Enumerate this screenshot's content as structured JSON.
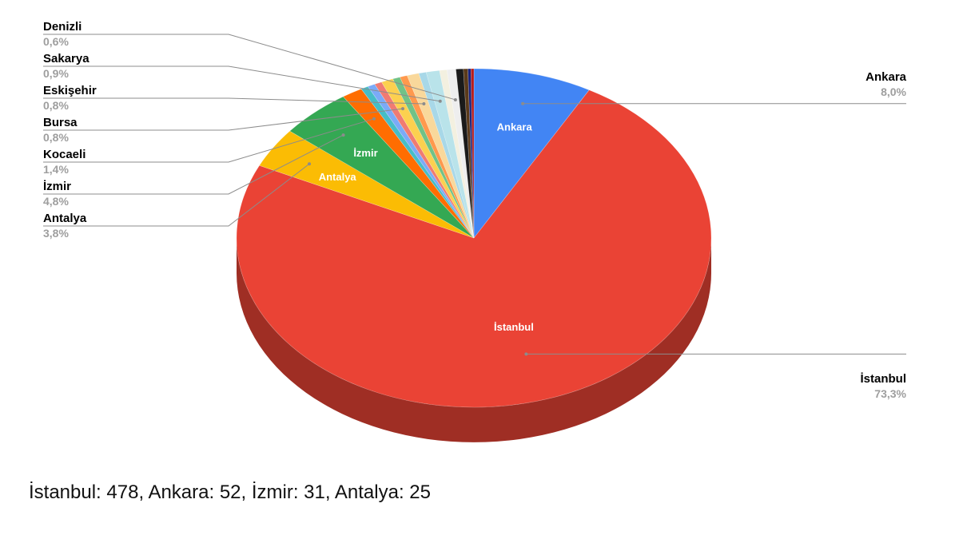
{
  "chart_data": {
    "type": "pie",
    "three_d": true,
    "start_angle_note": "first slice starts at 12 o'clock, clockwise",
    "slices": [
      {
        "name": "Ankara",
        "percent": 8.0,
        "percent_label": "8,0%",
        "color": "#4285f4",
        "show_label": true
      },
      {
        "name": "İstanbul",
        "percent": 73.3,
        "percent_label": "73,3%",
        "color": "#ea4335",
        "show_label": true
      },
      {
        "name": "Antalya",
        "percent": 3.8,
        "percent_label": "3,8%",
        "color": "#fbbc04",
        "show_label": true
      },
      {
        "name": "İzmir",
        "percent": 4.8,
        "percent_label": "4,8%",
        "color": "#34a853",
        "show_label": true
      },
      {
        "name": "Kocaeli",
        "percent": 1.4,
        "percent_label": "1,4%",
        "color": "#ff6d01",
        "show_label": false
      },
      {
        "name": "",
        "percent": 0.5,
        "color": "#46bdc6",
        "show_label": false
      },
      {
        "name": "",
        "percent": 0.5,
        "color": "#7baaf7",
        "show_label": false
      },
      {
        "name": "",
        "percent": 0.5,
        "color": "#f07b72",
        "show_label": false
      },
      {
        "name": "Bursa",
        "percent": 0.8,
        "percent_label": "0,8%",
        "color": "#fcd04f",
        "show_label": false
      },
      {
        "name": "",
        "percent": 0.5,
        "color": "#71c287",
        "show_label": false
      },
      {
        "name": "",
        "percent": 0.5,
        "color": "#ff994d",
        "show_label": false
      },
      {
        "name": "Eskişehir",
        "percent": 0.8,
        "percent_label": "0,8%",
        "color": "#f9d89b",
        "show_label": false
      },
      {
        "name": "",
        "percent": 0.5,
        "color": "#a8d8e8",
        "show_label": false
      },
      {
        "name": "Sakarya",
        "percent": 0.9,
        "percent_label": "0,9%",
        "color": "#b9e3ea",
        "show_label": false
      },
      {
        "name": "",
        "percent": 0.5,
        "color": "#f3f0e0",
        "show_label": false
      },
      {
        "name": "Denizli",
        "percent": 0.6,
        "percent_label": "0,6%",
        "color": "#eeeeee",
        "show_label": false
      },
      {
        "name": "",
        "percent": 0.5,
        "color": "#1a1a1a",
        "show_label": false
      },
      {
        "name": "",
        "percent": 0.3,
        "color": "#5a3a1a",
        "show_label": false
      },
      {
        "name": "",
        "percent": 0.2,
        "color": "#1a237e",
        "show_label": false
      },
      {
        "name": "",
        "percent": 0.2,
        "color": "#b71c1c",
        "show_label": false
      }
    ],
    "external_labels": [
      {
        "name": "Denizli",
        "percent_label": "0,6%",
        "side": "left"
      },
      {
        "name": "Sakarya",
        "percent_label": "0,9%",
        "side": "left"
      },
      {
        "name": "Eskişehir",
        "percent_label": "0,8%",
        "side": "left"
      },
      {
        "name": "Bursa",
        "percent_label": "0,8%",
        "side": "left"
      },
      {
        "name": "Kocaeli",
        "percent_label": "1,4%",
        "side": "left"
      },
      {
        "name": "İzmir",
        "percent_label": "4,8%",
        "side": "left"
      },
      {
        "name": "Antalya",
        "percent_label": "3,8%",
        "side": "left"
      },
      {
        "name": "Ankara",
        "percent_label": "8,0%",
        "side": "right"
      },
      {
        "name": "İstanbul",
        "percent_label": "73,3%",
        "side": "right"
      }
    ],
    "legend": "none"
  },
  "footer": {
    "text": "İstanbul: 478, Ankara: 52, İzmir: 31, Antalya: 25"
  }
}
